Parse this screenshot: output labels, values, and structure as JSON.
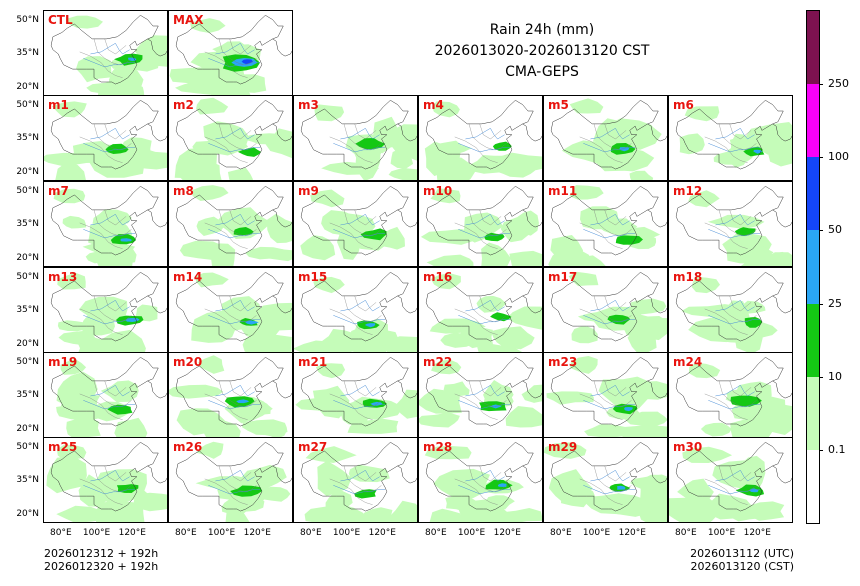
{
  "title": {
    "line1": "Rain 24h (mm)",
    "line2": "2026013020-2026013120 CST",
    "line3": "CMA-GEPS"
  },
  "footer": {
    "left_line1": "2026012312 + 192h",
    "left_line2": "2026012320 + 192h",
    "right_line1": "2026013112 (UTC)",
    "right_line2": "2026013120 (CST)"
  },
  "axes": {
    "lat_labels": [
      "50°N",
      "35°N",
      "20°N"
    ],
    "lon_labels": [
      "80°E",
      "100°E",
      "120°E"
    ]
  },
  "colorbar": {
    "levels": [
      "0.1",
      "10",
      "25",
      "50",
      "100",
      "250"
    ],
    "colors": [
      "#ffffff",
      "#c5fcb9",
      "#14c814",
      "#2aa6f5",
      "#1446fa",
      "#fa00fa",
      "#7d1250"
    ]
  },
  "panels": [
    "CTL",
    "MAX",
    "m1",
    "m2",
    "m3",
    "m4",
    "m5",
    "m6",
    "m7",
    "m8",
    "m9",
    "m10",
    "m11",
    "m12",
    "m13",
    "m14",
    "m15",
    "m16",
    "m17",
    "m18",
    "m19",
    "m20",
    "m21",
    "m22",
    "m23",
    "m24",
    "m25",
    "m26",
    "m27",
    "m28",
    "m29",
    "m30"
  ],
  "chart_data": {
    "type": "heatmap",
    "title": "Rain 24h (mm) 2026013020-2026013120 CST CMA-GEPS",
    "variable": "24-hour accumulated precipitation (mm)",
    "x_range": [
      70,
      140
    ],
    "y_range": [
      15,
      55
    ],
    "x_ticks": [
      80,
      100,
      120
    ],
    "y_ticks": [
      50,
      35,
      20
    ],
    "contour_levels": [
      0.1,
      10,
      25,
      50,
      100,
      250
    ],
    "members": [
      "CTL",
      "MAX",
      "m1",
      "m2",
      "m3",
      "m4",
      "m5",
      "m6",
      "m7",
      "m8",
      "m9",
      "m10",
      "m11",
      "m12",
      "m13",
      "m14",
      "m15",
      "m16",
      "m17",
      "m18",
      "m19",
      "m20",
      "m21",
      "m22",
      "m23",
      "m24",
      "m25",
      "m26",
      "m27",
      "m28",
      "m29",
      "m30"
    ],
    "layout": "6 columns x 6 rows; CTL and MAX occupy the first two cells of row 1"
  }
}
